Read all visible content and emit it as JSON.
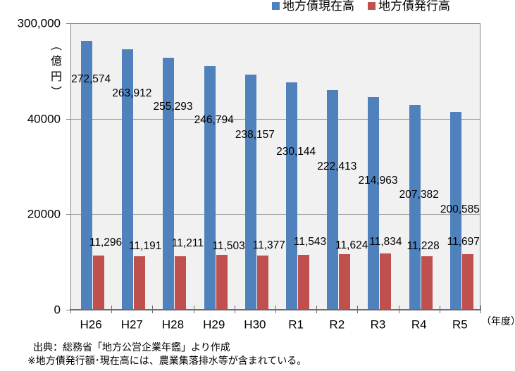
{
  "chart_data": {
    "type": "bar",
    "categories": [
      "H26",
      "H27",
      "H28",
      "H29",
      "H30",
      "R1",
      "R2",
      "R3",
      "R4",
      "R5"
    ],
    "x_axis_suffix": "（年度）",
    "y_axis_title": "（億円）",
    "y_tick_labels": [
      "300,000",
      "40000",
      "20000",
      "0"
    ],
    "gridline_values": [
      40000,
      20000
    ],
    "legend_position": "top",
    "plot_bg": "#f1f1f1",
    "series": [
      {
        "name": "地方債現在高",
        "color": "#4F81BD",
        "values": [
          272574,
          263912,
          255293,
          246794,
          238157,
          230144,
          222413,
          214963,
          207382,
          200585
        ],
        "labels": [
          "272,574",
          "263,912",
          "255,293",
          "246,794",
          "238,157",
          "230,144",
          "222,413",
          "214,963",
          "207,382",
          "200,585"
        ]
      },
      {
        "name": "地方債発行高",
        "color": "#C0504D",
        "values": [
          11296,
          11191,
          11211,
          11503,
          11377,
          11543,
          11624,
          11834,
          11228,
          11697
        ],
        "labels": [
          "11,296",
          "11,191",
          "11,211",
          "11,503",
          "11,377",
          "11,543",
          "11,624",
          "11,834",
          "11,228",
          "11,697"
        ]
      }
    ]
  },
  "legend": {
    "items": [
      {
        "label": "地方債現在高",
        "color": "#4F81BD"
      },
      {
        "label": "地方債発行高",
        "color": "#C0504D"
      }
    ]
  },
  "footer": {
    "line1": "出典：総務省「地方公営企業年鑑」より作成",
    "line2": "※地方債発行額･現在高には、農業集落排水等が含まれている。"
  }
}
